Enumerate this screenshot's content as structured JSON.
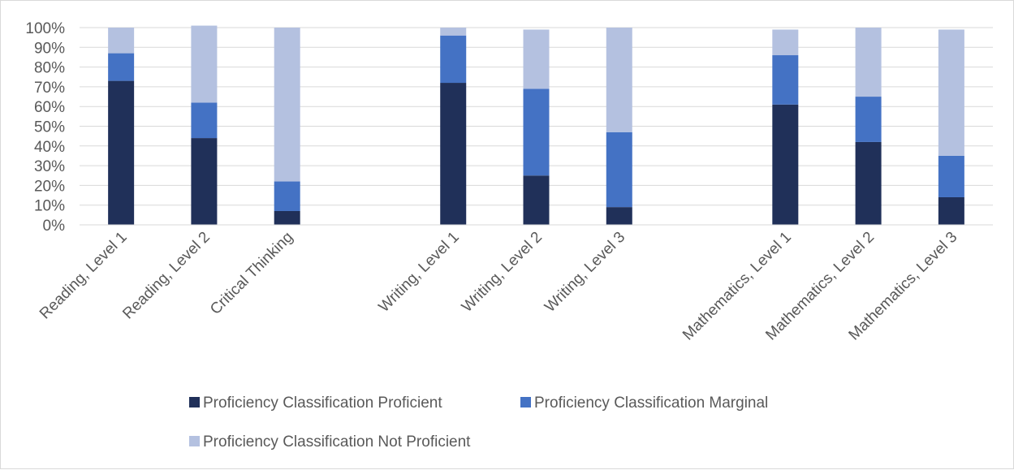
{
  "chart_data": {
    "type": "bar",
    "stacked": true,
    "categories": [
      "Reading, Level 1",
      "Reading, Level 2",
      "Critical Thinking",
      "",
      "Writing, Level 1",
      "Writing, Level 2",
      "Writing, Level 3",
      "",
      "Mathematics, Level 1",
      "Mathematics, Level 2",
      "Mathematics, Level 3"
    ],
    "series": [
      {
        "name": "Proficiency Classification Proficient",
        "color": "#203059",
        "values": [
          73,
          44,
          7,
          null,
          72,
          25,
          9,
          null,
          61,
          42,
          14
        ]
      },
      {
        "name": "Proficiency Classification Marginal",
        "color": "#4472c4",
        "values": [
          14,
          18,
          15,
          null,
          24,
          44,
          38,
          null,
          25,
          23,
          21
        ]
      },
      {
        "name": "Proficiency Classification Not Proficient",
        "color": "#b4c1e0",
        "values": [
          13,
          39,
          78,
          null,
          4,
          30,
          53,
          null,
          13,
          35,
          64
        ]
      }
    ],
    "ylim": [
      0,
      100
    ],
    "y_ticks": [
      "0%",
      "10%",
      "20%",
      "30%",
      "40%",
      "50%",
      "60%",
      "70%",
      "80%",
      "90%",
      "100%"
    ],
    "grid": true,
    "legend_position": "bottom"
  }
}
